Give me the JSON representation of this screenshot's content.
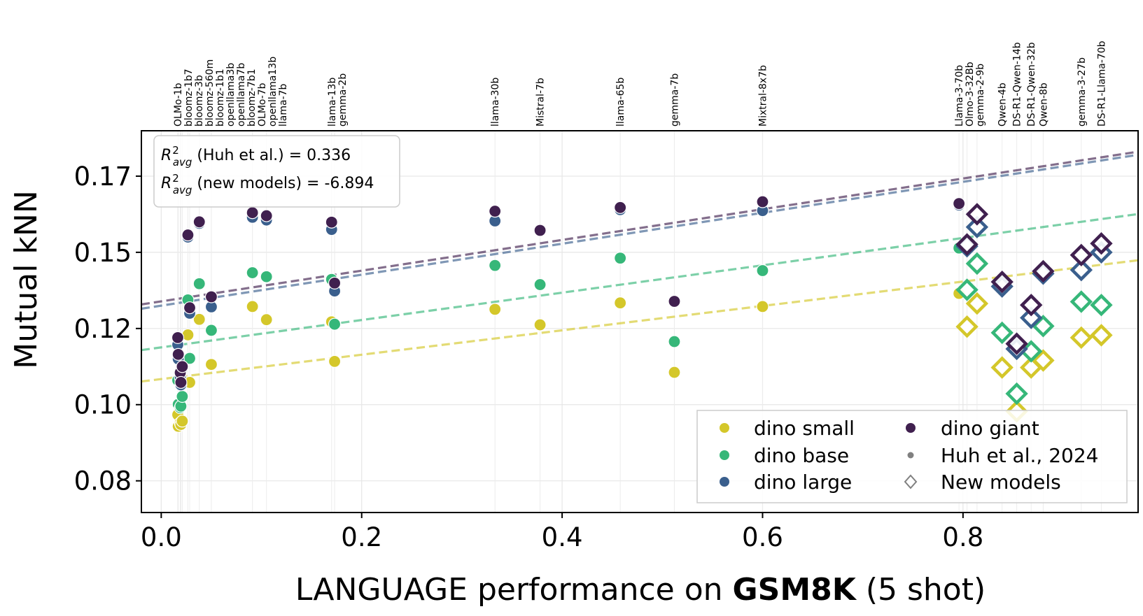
{
  "chart_data": {
    "type": "scatter",
    "xlabel_parts": [
      "LANGUAGE performance on ",
      "GSM8K",
      " (5 shot)"
    ],
    "ylabel": "Mutual kNN",
    "xlim": [
      -0.0198,
      0.9747
    ],
    "ylim": [
      0.0646,
      0.1899
    ],
    "x_ticks": [
      {
        "value": 0.0,
        "label": "0.0"
      },
      {
        "value": 0.2,
        "label": "0.2"
      },
      {
        "value": 0.4,
        "label": "0.4"
      },
      {
        "value": 0.6,
        "label": "0.6"
      },
      {
        "value": 0.8,
        "label": "0.8"
      }
    ],
    "y_ticks": [
      {
        "value": 0.075,
        "label": "0.08"
      },
      {
        "value": 0.1,
        "label": "0.10"
      },
      {
        "value": 0.125,
        "label": "0.12"
      },
      {
        "value": 0.15,
        "label": "0.15"
      },
      {
        "value": 0.175,
        "label": "0.17"
      }
    ],
    "grid": true,
    "series": [
      {
        "key": "small",
        "name": "dino small",
        "color": "#d4c72a"
      },
      {
        "key": "base",
        "name": "dino base",
        "color": "#36b779"
      },
      {
        "key": "large",
        "name": "dino large",
        "color": "#3a5f8d"
      },
      {
        "key": "giant",
        "name": "dino giant",
        "color": "#40204f"
      }
    ],
    "fit_lines": [
      {
        "series": "small",
        "intercept": 0.1084,
        "slope": 0.04
      },
      {
        "series": "base",
        "intercept": 0.1188,
        "slope": 0.0449
      },
      {
        "series": "large",
        "intercept": 0.1325,
        "slope": 0.0508
      },
      {
        "series": "giant",
        "intercept": 0.1339,
        "slope": 0.0504
      }
    ],
    "models": [
      {
        "name": "OLMo-1b",
        "x": 0.0165,
        "marker": "circle",
        "values": {
          "small": 0.0967,
          "base": 0.108,
          "large": 0.1197,
          "giant": 0.122
        }
      },
      {
        "name": "bloomz-1b7",
        "x": 0.017,
        "marker": "circle",
        "values": {
          "small": 0.0929,
          "base": 0.1001,
          "large": 0.115,
          "giant": 0.1165
        }
      },
      {
        "name": "bloomz-3b",
        "x": 0.019,
        "marker": "circle",
        "values": {
          "small": 0.094,
          "base": 0.099,
          "large": 0.109,
          "giant": 0.1105
        }
      },
      {
        "name": "bloomz-560m",
        "x": 0.0196,
        "marker": "circle",
        "values": {
          "small": 0.0935,
          "base": 0.0995,
          "large": 0.1065,
          "giant": 0.1073
        }
      },
      {
        "name": "bloomz-1b1",
        "x": 0.021,
        "marker": "circle",
        "values": {
          "small": 0.0946,
          "base": 0.1027,
          "large": 0.112,
          "giant": 0.1125
        }
      },
      {
        "name": "openllama3b",
        "x": 0.0266,
        "marker": "circle",
        "values": {
          "small": 0.1229,
          "base": 0.1344,
          "large": 0.155,
          "giant": 0.1557
        }
      },
      {
        "name": "openllama7b",
        "x": 0.0284,
        "marker": "circle",
        "values": {
          "small": 0.1073,
          "base": 0.1152,
          "large": 0.13,
          "giant": 0.1318
        }
      },
      {
        "name": "bloomz-7b1",
        "x": 0.038,
        "marker": "circle",
        "values": {
          "small": 0.128,
          "base": 0.1397,
          "large": 0.1595,
          "giant": 0.16
        }
      },
      {
        "name": "OLMo-7b",
        "x": 0.05,
        "marker": "circle",
        "values": {
          "small": 0.1132,
          "base": 0.1244,
          "large": 0.1321,
          "giant": 0.1354
        }
      },
      {
        "name": "openllama13b",
        "x": 0.091,
        "marker": "circle",
        "values": {
          "small": 0.1322,
          "base": 0.1433,
          "large": 0.1615,
          "giant": 0.163
        }
      },
      {
        "name": "llama-7b",
        "x": 0.105,
        "marker": "circle",
        "values": {
          "small": 0.1279,
          "base": 0.142,
          "large": 0.1606,
          "giant": 0.162
        }
      },
      {
        "name": "llama-13b",
        "x": 0.17,
        "marker": "circle",
        "values": {
          "small": 0.1272,
          "base": 0.1411,
          "large": 0.1575,
          "giant": 0.1599
        }
      },
      {
        "name": "gemma-2b",
        "x": 0.173,
        "marker": "circle",
        "values": {
          "small": 0.1142,
          "base": 0.1264,
          "large": 0.1373,
          "giant": 0.1399
        }
      },
      {
        "name": "llama-30b",
        "x": 0.333,
        "marker": "circle",
        "values": {
          "small": 0.1313,
          "base": 0.1457,
          "large": 0.1603,
          "giant": 0.1635
        }
      },
      {
        "name": "Mistral-7b",
        "x": 0.378,
        "marker": "circle",
        "values": {
          "small": 0.1262,
          "base": 0.1394,
          "large": 0.157,
          "giant": 0.1572
        }
      },
      {
        "name": "llama-65b",
        "x": 0.458,
        "marker": "circle",
        "values": {
          "small": 0.1334,
          "base": 0.1481,
          "large": 0.164,
          "giant": 0.1647
        }
      },
      {
        "name": "gemma-7b",
        "x": 0.512,
        "marker": "circle",
        "values": {
          "small": 0.1106,
          "base": 0.1207,
          "large": 0.1337,
          "giant": 0.1339
        }
      },
      {
        "name": "Mixtral-8x7b",
        "x": 0.6,
        "marker": "circle",
        "values": {
          "small": 0.1322,
          "base": 0.144,
          "large": 0.1637,
          "giant": 0.1666
        }
      },
      {
        "name": "Llama-3-70b",
        "x": 0.796,
        "marker": "circle",
        "values": {
          "small": 0.1365,
          "base": 0.1514,
          "large": 0.1655,
          "giant": 0.166
        }
      },
      {
        "name": "Olmo-3-32Bb",
        "x": 0.804,
        "marker": "diamond",
        "values": {
          "small": 0.1256,
          "base": 0.1377,
          "large": 0.152,
          "giant": 0.1526
        }
      },
      {
        "name": "gemma-2-9b",
        "x": 0.814,
        "marker": "diamond",
        "values": {
          "small": 0.1332,
          "base": 0.1463,
          "large": 0.1583,
          "giant": 0.1625
        }
      },
      {
        "name": "Qwen-4b",
        "x": 0.839,
        "marker": "diamond",
        "values": {
          "small": 0.1122,
          "base": 0.1236,
          "large": 0.1388,
          "giant": 0.1403
        }
      },
      {
        "name": "DS-R1-Qwen-14b",
        "x": 0.8536,
        "marker": "diamond",
        "values": {
          "small": 0.0978,
          "base": 0.1036,
          "large": 0.1183,
          "giant": 0.12
        }
      },
      {
        "name": "DS-R1-Qwen-32b",
        "x": 0.868,
        "marker": "diamond",
        "values": {
          "small": 0.1122,
          "base": 0.1175,
          "large": 0.1285,
          "giant": 0.1327
        }
      },
      {
        "name": "Qwen-8b",
        "x": 0.88,
        "marker": "diamond",
        "values": {
          "small": 0.1145,
          "base": 0.1258,
          "large": 0.143,
          "giant": 0.1438
        }
      },
      {
        "name": "gemma-3-27b",
        "x": 0.918,
        "marker": "diamond",
        "values": {
          "small": 0.122,
          "base": 0.1338,
          "large": 0.1442,
          "giant": 0.1491
        }
      },
      {
        "name": "DS-R1-Llama-70b",
        "x": 0.938,
        "marker": "diamond",
        "values": {
          "small": 0.1228,
          "base": 0.1327,
          "large": 0.15,
          "giant": 0.1529
        }
      }
    ],
    "legend": {
      "placement": "lower-right",
      "marker_entries": [
        {
          "label": "Huh et al., 2024",
          "marker": "circle",
          "color": "#808080"
        },
        {
          "label": "New models",
          "marker": "diamond",
          "color": "#808080"
        }
      ]
    },
    "annotation": {
      "symbol": {
        "base": "R",
        "sup": "2",
        "sub": "avg"
      },
      "lines": [
        {
          "text": " (Huh et al.) = 0.336"
        },
        {
          "text": " (new models) = -6.894"
        }
      ]
    }
  }
}
